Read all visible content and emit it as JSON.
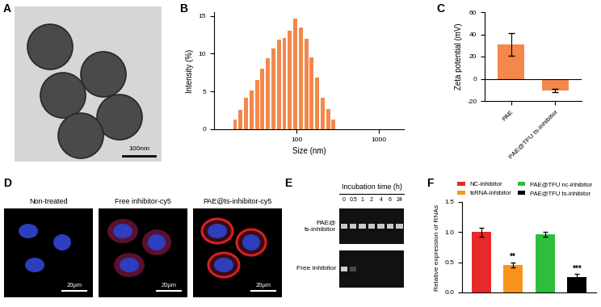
{
  "panels": {
    "A": {
      "label": "A",
      "scale_bar": "100nm"
    },
    "D": {
      "label": "D",
      "images": [
        {
          "title": "Non-treated",
          "scale_bar": "20μm"
        },
        {
          "title": "Free inhibitor-cy5",
          "scale_bar": "20μm"
        },
        {
          "title": "PAE@ts-inhibitor-cy5",
          "scale_bar": "20μm"
        }
      ]
    },
    "E": {
      "label": "E",
      "title": "Incubation time (h)",
      "lanes": [
        "0",
        "0.5",
        "1",
        "2",
        "4",
        "6",
        "24"
      ],
      "rows": [
        "PAE@\nts-inhibitor",
        "Free inhibitor"
      ]
    }
  },
  "chart_data": [
    {
      "panel": "B",
      "type": "bar",
      "xlabel": "Size (nm)",
      "ylabel": "Intensity (%)",
      "log": "x",
      "x": [
        18.0,
        21.0,
        24.4,
        28.5,
        33.2,
        38.6,
        45.0,
        52.4,
        61.1,
        71.2,
        82.9,
        96.6,
        112.5,
        131.1,
        152.7,
        177.9,
        207.3,
        241.5,
        281.3
      ],
      "values": [
        1.3,
        2.6,
        4.2,
        5.1,
        6.5,
        8.0,
        9.4,
        10.7,
        11.9,
        12.1,
        13.0,
        14.6,
        13.5,
        12.0,
        9.5,
        6.8,
        4.2,
        2.7,
        1.3
      ],
      "color": "#f4874b",
      "xlim": [
        10,
        2000
      ],
      "xticks": [
        100,
        1000
      ],
      "ylim": [
        0,
        15.5
      ],
      "yticks": [
        0,
        5,
        10,
        15
      ]
    },
    {
      "panel": "C",
      "type": "bar",
      "ylabel": "Zeta potential (mV)",
      "categories": [
        "PAE",
        "PAE@TFU ts-inhibitor"
      ],
      "values": [
        31,
        -10.5
      ],
      "errors": [
        10,
        1.5
      ],
      "color": "#f4874b",
      "ylim": [
        -20,
        60
      ],
      "yticks": [
        -20,
        0,
        20,
        40,
        60
      ]
    },
    {
      "panel": "F",
      "type": "bar",
      "ylabel": "Relative expression of RNAs",
      "categories": [
        null,
        null,
        null,
        null
      ],
      "series": [
        {
          "name": "NC-inhibitor",
          "color": "#e8282b",
          "values": [
            1.0,
            null,
            null,
            null
          ],
          "errors": [
            0.07,
            null,
            null,
            null
          ],
          "annotations": [
            null,
            null,
            null,
            null
          ]
        },
        {
          "name": "tsRNA-inhibitor",
          "color": "#f7941d",
          "values": [
            null,
            0.46,
            null,
            null
          ],
          "errors": [
            null,
            0.04,
            null,
            null
          ],
          "annotations": [
            null,
            "**",
            null,
            null
          ]
        },
        {
          "name": "PAE@TFU nc-inhibitor",
          "color": "#2dbe3c",
          "values": [
            null,
            null,
            0.97,
            null
          ],
          "errors": [
            null,
            null,
            0.04,
            null
          ],
          "annotations": [
            null,
            null,
            null,
            null
          ]
        },
        {
          "name": "PAE@TFU ts-inhibitor",
          "color": "#000000",
          "values": [
            null,
            null,
            null,
            0.26
          ],
          "errors": [
            null,
            null,
            null,
            0.05
          ],
          "annotations": [
            null,
            null,
            null,
            "***"
          ]
        }
      ],
      "ylim": [
        0,
        1.5
      ],
      "yticks": [
        {
          "value": 0,
          "label": "0.0"
        },
        {
          "value": 0.5,
          "label": "0.5"
        },
        {
          "value": 1.0,
          "label": "1.0"
        },
        {
          "value": 1.5,
          "label": "1.5"
        }
      ],
      "legend": "above",
      "tick_labels": "y"
    }
  ]
}
